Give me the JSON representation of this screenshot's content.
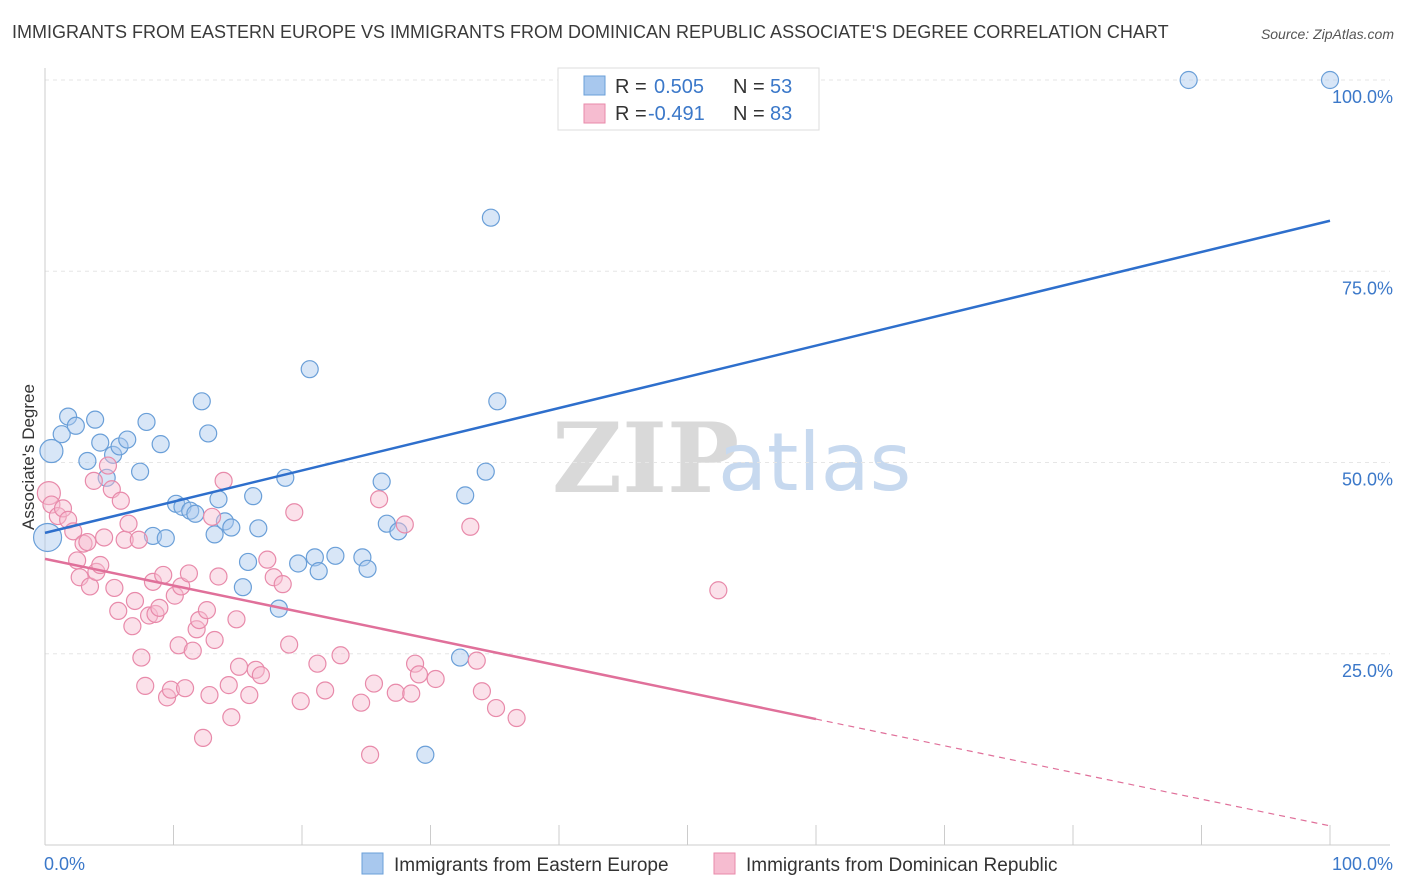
{
  "header": {
    "title": "IMMIGRANTS FROM EASTERN EUROPE VS IMMIGRANTS FROM DOMINICAN REPUBLIC ASSOCIATE'S DEGREE CORRELATION CHART",
    "source": "Source: ZipAtlas.com"
  },
  "watermark": {
    "zip": "ZIP",
    "atlas": "atlas"
  },
  "legend": {
    "r_label": "R =",
    "n_label": "N =",
    "rows": [
      {
        "r": "0.505",
        "n": "53",
        "color": "#a8c8ee",
        "stroke": "#6a9fd8"
      },
      {
        "r": "-0.491",
        "n": "83",
        "color": "#f6bcd0",
        "stroke": "#e88aaa"
      }
    ]
  },
  "bottom_legend": [
    {
      "label": "Immigrants from Eastern Europe",
      "color": "#a8c8ee",
      "stroke": "#6a9fd8"
    },
    {
      "label": "Immigrants from Dominican Republic",
      "color": "#f6bcd0",
      "stroke": "#e88aaa"
    }
  ],
  "chart_data": {
    "type": "scatter",
    "title": "IMMIGRANTS FROM EASTERN EUROPE VS IMMIGRANTS FROM DOMINICAN REPUBLIC ASSOCIATE'S DEGREE CORRELATION CHART",
    "xlabel": "",
    "ylabel": "Associate's Degree",
    "xlim": [
      0,
      100
    ],
    "ylim": [
      0,
      100
    ],
    "x_tick_labels": [
      "0.0%",
      "100.0%"
    ],
    "y_ticks": [
      25,
      50,
      75,
      100
    ],
    "y_tick_labels": [
      "25.0%",
      "50.0%",
      "75.0%",
      "100.0%"
    ],
    "grid": true,
    "legend_position": "top-center",
    "series": [
      {
        "name": "Immigrants from Eastern Europe",
        "color": "#6a9fd8",
        "trend": {
          "x": [
            0,
            100
          ],
          "y": [
            40.8,
            81.6
          ],
          "color": "#2e6fcc"
        },
        "points": [
          [
            0.2,
            40.2,
            3
          ],
          [
            0.5,
            51.5,
            2
          ],
          [
            1.3,
            53.7,
            1
          ],
          [
            1.8,
            56.0,
            1
          ],
          [
            2.4,
            54.8,
            1
          ],
          [
            3.3,
            50.2,
            1
          ],
          [
            3.9,
            55.6,
            1
          ],
          [
            4.3,
            52.6,
            1
          ],
          [
            4.8,
            48.0,
            1
          ],
          [
            5.3,
            51.0,
            1
          ],
          [
            5.8,
            52.1,
            1
          ],
          [
            6.4,
            53.0,
            1
          ],
          [
            7.4,
            48.8,
            1
          ],
          [
            7.9,
            55.3,
            1
          ],
          [
            8.4,
            40.4,
            1
          ],
          [
            9.0,
            52.4,
            1
          ],
          [
            9.4,
            40.1,
            1
          ],
          [
            10.2,
            44.6,
            1
          ],
          [
            10.7,
            44.2,
            1
          ],
          [
            11.3,
            43.7,
            1
          ],
          [
            11.7,
            43.3,
            1
          ],
          [
            12.2,
            58.0,
            1
          ],
          [
            12.7,
            53.8,
            1
          ],
          [
            13.2,
            40.6,
            1
          ],
          [
            13.5,
            45.2,
            1
          ],
          [
            14.0,
            42.3,
            1
          ],
          [
            14.5,
            41.5,
            1
          ],
          [
            15.4,
            33.7,
            1
          ],
          [
            15.8,
            37.0,
            1
          ],
          [
            16.2,
            45.6,
            1
          ],
          [
            16.6,
            41.4,
            1
          ],
          [
            18.2,
            30.9,
            1
          ],
          [
            18.7,
            48.0,
            1
          ],
          [
            19.7,
            36.8,
            1
          ],
          [
            20.6,
            62.2,
            1
          ],
          [
            21.0,
            37.6,
            1
          ],
          [
            21.3,
            35.8,
            1
          ],
          [
            22.6,
            37.8,
            1
          ],
          [
            24.7,
            37.6,
            1
          ],
          [
            25.1,
            36.1,
            1
          ],
          [
            26.2,
            47.5,
            1
          ],
          [
            26.6,
            42.0,
            1
          ],
          [
            27.5,
            41.0,
            1
          ],
          [
            29.6,
            11.8,
            1
          ],
          [
            32.3,
            24.5,
            1
          ],
          [
            32.7,
            45.7,
            1
          ],
          [
            34.3,
            48.8,
            1
          ],
          [
            34.7,
            82.0,
            1
          ],
          [
            35.2,
            58.0,
            1
          ],
          [
            89.0,
            100.0,
            1
          ],
          [
            100.0,
            100.0,
            1
          ]
        ]
      },
      {
        "name": "Immigrants from Dominican Republic",
        "color": "#e88aaa",
        "trend": {
          "x": [
            0,
            100
          ],
          "y": [
            37.4,
            2.5
          ],
          "color": "#e0709a",
          "solid_until_x": 60
        },
        "points": [
          [
            0.3,
            46.0,
            2
          ],
          [
            0.5,
            44.5,
            1
          ],
          [
            1.0,
            43.0,
            1
          ],
          [
            1.4,
            44.0,
            1
          ],
          [
            1.8,
            42.5,
            1
          ],
          [
            2.2,
            41.0,
            1
          ],
          [
            2.5,
            37.2,
            1
          ],
          [
            2.7,
            35.0,
            1
          ],
          [
            3.0,
            39.4,
            1
          ],
          [
            3.3,
            39.6,
            1
          ],
          [
            3.5,
            33.8,
            1
          ],
          [
            3.8,
            47.6,
            1
          ],
          [
            4.0,
            35.7,
            1
          ],
          [
            4.3,
            36.6,
            1
          ],
          [
            4.6,
            40.2,
            1
          ],
          [
            4.9,
            49.6,
            1
          ],
          [
            5.2,
            46.5,
            1
          ],
          [
            5.4,
            33.6,
            1
          ],
          [
            5.7,
            30.6,
            1
          ],
          [
            5.9,
            45.0,
            1
          ],
          [
            6.2,
            39.9,
            1
          ],
          [
            6.5,
            42.0,
            1
          ],
          [
            6.8,
            28.6,
            1
          ],
          [
            7.0,
            31.9,
            1
          ],
          [
            7.3,
            39.9,
            1
          ],
          [
            7.5,
            24.5,
            1
          ],
          [
            7.8,
            20.8,
            1
          ],
          [
            8.1,
            30.0,
            1
          ],
          [
            8.4,
            34.4,
            1
          ],
          [
            8.6,
            30.2,
            1
          ],
          [
            8.9,
            31.0,
            1
          ],
          [
            9.2,
            35.3,
            1
          ],
          [
            9.5,
            19.3,
            1
          ],
          [
            9.8,
            20.3,
            1
          ],
          [
            10.1,
            32.6,
            1
          ],
          [
            10.4,
            26.1,
            1
          ],
          [
            10.6,
            33.8,
            1
          ],
          [
            10.9,
            20.5,
            1
          ],
          [
            11.2,
            35.5,
            1
          ],
          [
            11.5,
            25.4,
            1
          ],
          [
            11.8,
            28.2,
            1
          ],
          [
            12.0,
            29.4,
            1
          ],
          [
            12.3,
            14.0,
            1
          ],
          [
            12.6,
            30.7,
            1
          ],
          [
            12.8,
            19.6,
            1
          ],
          [
            13.0,
            42.9,
            1
          ],
          [
            13.2,
            26.8,
            1
          ],
          [
            13.5,
            35.1,
            1
          ],
          [
            13.9,
            47.6,
            1
          ],
          [
            14.3,
            20.9,
            1
          ],
          [
            14.5,
            16.7,
            1
          ],
          [
            14.9,
            29.5,
            1
          ],
          [
            15.1,
            23.3,
            1
          ],
          [
            15.9,
            19.6,
            1
          ],
          [
            16.4,
            22.9,
            1
          ],
          [
            16.8,
            22.2,
            1
          ],
          [
            17.3,
            37.3,
            1
          ],
          [
            17.8,
            35.0,
            1
          ],
          [
            18.5,
            34.1,
            1
          ],
          [
            19.0,
            26.2,
            1
          ],
          [
            19.4,
            43.5,
            1
          ],
          [
            19.9,
            18.8,
            1
          ],
          [
            21.2,
            23.7,
            1
          ],
          [
            21.8,
            20.2,
            1
          ],
          [
            23.0,
            24.8,
            1
          ],
          [
            24.6,
            18.6,
            1
          ],
          [
            25.3,
            11.8,
            1
          ],
          [
            25.6,
            21.1,
            1
          ],
          [
            26.0,
            45.2,
            1
          ],
          [
            27.3,
            19.9,
            1
          ],
          [
            28.0,
            41.9,
            1
          ],
          [
            28.5,
            19.8,
            1
          ],
          [
            28.8,
            23.7,
            1
          ],
          [
            29.1,
            22.3,
            1
          ],
          [
            30.4,
            21.7,
            1
          ],
          [
            33.1,
            41.6,
            1
          ],
          [
            33.6,
            24.1,
            1
          ],
          [
            34.0,
            20.1,
            1
          ],
          [
            35.1,
            17.9,
            1
          ],
          [
            36.7,
            16.6,
            1
          ],
          [
            52.4,
            33.3,
            1
          ]
        ]
      }
    ]
  }
}
